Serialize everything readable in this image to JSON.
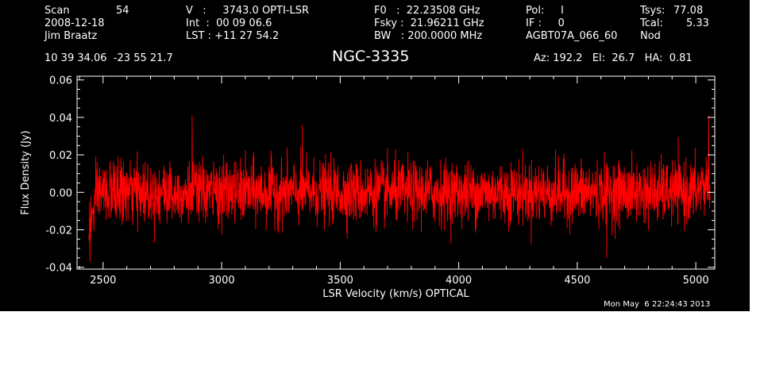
{
  "header": {
    "col1": [
      "Scan",
      "2008-12-18",
      "Jim Braatz"
    ],
    "col1_val": "54",
    "col2": [
      "V   :     3743.0 OPTI-LSR",
      "Int  :  00 09 06.6",
      "LST : +11 27 54.2"
    ],
    "col3": [
      "F0   :  22.23508 GHz",
      "Fsky :  21.96211 GHz",
      "BW   : 200.0000 MHz"
    ],
    "col4": [
      "Pol:     I",
      "IF :     0",
      "AGBT07A_066_60"
    ],
    "col5": [
      "Tsys:",
      "Tcal:",
      "Nod"
    ],
    "col5_vals": [
      "77.08",
      "5.33"
    ],
    "coords": "10 39 34.06  -23 55 21.7",
    "source": "NGC-3335",
    "azel": "Az: 192.2   El:  26.7   HA:  0.81",
    "timestamp": "Mon May  6 22:24:43 2013"
  },
  "colors": {
    "background": "#000000",
    "axes": "#ffffff",
    "trace": "#ff0000"
  },
  "chart_data": {
    "type": "line",
    "xlabel": "LSR Velocity (km/s) OPTICAL",
    "ylabel": "Flux Density (Jy)",
    "xlim": [
      2390,
      5080
    ],
    "ylim": [
      -0.041,
      0.062
    ],
    "xticks": [
      2500,
      3000,
      3500,
      4000,
      4500,
      5000
    ],
    "xtick_labels": [
      "2500",
      "3000",
      "3500",
      "4000",
      "4500",
      "5000"
    ],
    "yticks": [
      -0.04,
      -0.02,
      0.0,
      0.02,
      0.04,
      0.06
    ],
    "ytick_labels": [
      "-0.04",
      "-0.02",
      "0.00",
      "0.02",
      "0.04",
      "0.06"
    ],
    "series": [
      {
        "x_range": [
          2440,
          5060
        ],
        "rms": 0.011,
        "extremes": [
          {
            "x": 2445,
            "y": -0.037
          },
          {
            "x": 2875,
            "y": 0.041
          },
          {
            "x": 3340,
            "y": 0.036
          },
          {
            "x": 4625,
            "y": -0.035
          },
          {
            "x": 5055,
            "y": 0.041
          }
        ]
      }
    ]
  }
}
